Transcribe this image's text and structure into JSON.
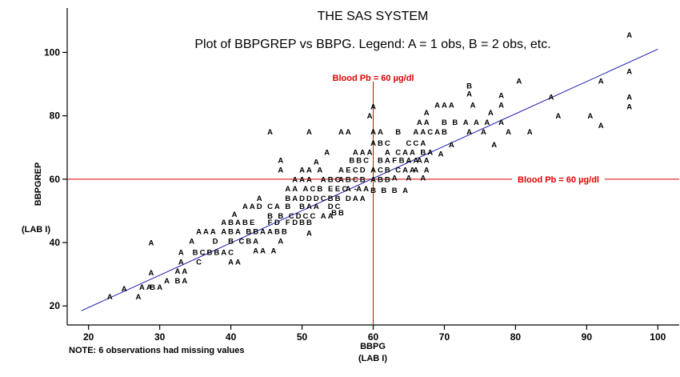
{
  "title": "THE SAS SYSTEM",
  "subtitle": "Plot of BBPGREP vs BBPG.  Legend: A = 1 obs, B = 2 obs, etc.",
  "note": "NOTE: 6 observations had missing values",
  "colors": {
    "reference": "#e00000",
    "fit": "#1a1ab0",
    "axis": "#000000"
  },
  "chart_data": {
    "type": "scatter",
    "xlabel": "BBPG",
    "xlabel2": "(LAB I)",
    "ylabel": "BBPGREP",
    "ylabel2": "(LAB I)",
    "xlim": [
      17,
      103
    ],
    "ylim": [
      14,
      114
    ],
    "xticks": [
      20,
      30,
      40,
      50,
      60,
      70,
      80,
      90,
      100
    ],
    "yticks": [
      20,
      40,
      60,
      80,
      100
    ],
    "reference_lines": [
      {
        "axis": "x",
        "value": 60,
        "label": "Blood Pb = 60 µg/dl"
      },
      {
        "axis": "y",
        "value": 60,
        "label": "Blood Pb = 60 µg/dl"
      }
    ],
    "fit_line": {
      "x": [
        19,
        100
      ],
      "y": [
        18.5,
        101
      ]
    },
    "points": [
      [
        23,
        23,
        "A"
      ],
      [
        25,
        25.5,
        "A"
      ],
      [
        27,
        23,
        "A"
      ],
      [
        27.5,
        26,
        "A"
      ],
      [
        28.5,
        26,
        "A"
      ],
      [
        29,
        26,
        "B"
      ],
      [
        30,
        26,
        "A"
      ],
      [
        31,
        28,
        "A"
      ],
      [
        32.5,
        28,
        "B"
      ],
      [
        33.5,
        28,
        "A"
      ],
      [
        28.8,
        30.5,
        "A"
      ],
      [
        32.5,
        31,
        "A"
      ],
      [
        33.5,
        31,
        "A"
      ],
      [
        28.8,
        40,
        "A"
      ],
      [
        33,
        34,
        "A"
      ],
      [
        33,
        37,
        "A"
      ],
      [
        35.5,
        34,
        "C"
      ],
      [
        35,
        37,
        "B"
      ],
      [
        36,
        37,
        "C"
      ],
      [
        37,
        37,
        "B"
      ],
      [
        38,
        37,
        "B"
      ],
      [
        39,
        37,
        "A"
      ],
      [
        40,
        37,
        "C"
      ],
      [
        40,
        34,
        "A"
      ],
      [
        41,
        34,
        "A"
      ],
      [
        34.5,
        40.5,
        "A"
      ],
      [
        37.8,
        40.5,
        "D"
      ],
      [
        40,
        40.5,
        "B"
      ],
      [
        41.5,
        40.5,
        "C"
      ],
      [
        42.5,
        40.5,
        "B"
      ],
      [
        43.5,
        40.5,
        "A"
      ],
      [
        43.5,
        37.5,
        "A"
      ],
      [
        44.5,
        37.5,
        "A"
      ],
      [
        46,
        37.5,
        "A"
      ],
      [
        47,
        40.5,
        "A"
      ],
      [
        51,
        43,
        "A"
      ],
      [
        35.5,
        43.5,
        "A"
      ],
      [
        36.5,
        43.5,
        "A"
      ],
      [
        37.5,
        43.5,
        "A"
      ],
      [
        39,
        43.5,
        "A"
      ],
      [
        40,
        43.5,
        "B"
      ],
      [
        41,
        43.5,
        "A"
      ],
      [
        42.5,
        43.5,
        "B"
      ],
      [
        43.5,
        43.5,
        "B"
      ],
      [
        44.5,
        43.5,
        "A"
      ],
      [
        45.5,
        43.5,
        "A"
      ],
      [
        46.5,
        43.5,
        "B"
      ],
      [
        47.5,
        43.5,
        "B"
      ],
      [
        39,
        46.5,
        "A"
      ],
      [
        40,
        46.5,
        "B"
      ],
      [
        41,
        46.5,
        "A"
      ],
      [
        42,
        46.5,
        "B"
      ],
      [
        43,
        46.5,
        "E"
      ],
      [
        45.5,
        46.5,
        "F"
      ],
      [
        46.5,
        46.5,
        "D"
      ],
      [
        48,
        46.5,
        "F"
      ],
      [
        49,
        46.5,
        "D"
      ],
      [
        50,
        46.5,
        "B"
      ],
      [
        51,
        46.5,
        "B"
      ],
      [
        40.5,
        49,
        "A"
      ],
      [
        42,
        51.5,
        "A"
      ],
      [
        43,
        51.5,
        "A"
      ],
      [
        44,
        51.5,
        "D"
      ],
      [
        45.5,
        51.5,
        "C"
      ],
      [
        46.5,
        51.5,
        "A"
      ],
      [
        48,
        51.5,
        "B"
      ],
      [
        45.5,
        48.5,
        "B"
      ],
      [
        47,
        48.5,
        "B"
      ],
      [
        48.5,
        48.5,
        "C"
      ],
      [
        49.5,
        48.5,
        "D"
      ],
      [
        50.5,
        48.5,
        "C"
      ],
      [
        51.5,
        48.5,
        "C"
      ],
      [
        53,
        48.5,
        "A"
      ],
      [
        54,
        48.5,
        "A"
      ],
      [
        44,
        54,
        "A"
      ],
      [
        48,
        54,
        "B"
      ],
      [
        49,
        54,
        "A"
      ],
      [
        50,
        54,
        "D"
      ],
      [
        51,
        54,
        "D"
      ],
      [
        52,
        54,
        "D"
      ],
      [
        53,
        54,
        "C"
      ],
      [
        54,
        54,
        "B"
      ],
      [
        55,
        54,
        "B"
      ],
      [
        50,
        51.5,
        "B"
      ],
      [
        51,
        51.5,
        "A"
      ],
      [
        52,
        51.5,
        "A"
      ],
      [
        54,
        51.5,
        "D"
      ],
      [
        55,
        51.5,
        "C"
      ],
      [
        54.5,
        49.5,
        "B"
      ],
      [
        55.5,
        49.5,
        "B"
      ],
      [
        48,
        57,
        "A"
      ],
      [
        49,
        57,
        "A"
      ],
      [
        50.5,
        57,
        "A"
      ],
      [
        51.5,
        57,
        "C"
      ],
      [
        52.5,
        57,
        "B"
      ],
      [
        54,
        57,
        "E"
      ],
      [
        55,
        57,
        "E"
      ],
      [
        56,
        57,
        "C"
      ],
      [
        56.5,
        54,
        "D"
      ],
      [
        57.5,
        54,
        "A"
      ],
      [
        58.5,
        54,
        "A"
      ],
      [
        56.5,
        57,
        "A"
      ],
      [
        57.5,
        57,
        "-"
      ],
      [
        58,
        57,
        "A"
      ],
      [
        59,
        57,
        "A"
      ],
      [
        49,
        60,
        "A"
      ],
      [
        50,
        60,
        "A"
      ],
      [
        51,
        60,
        "A"
      ],
      [
        53,
        60,
        "A"
      ],
      [
        54,
        60,
        "B"
      ],
      [
        55,
        60,
        "C"
      ],
      [
        55.5,
        60,
        "A"
      ],
      [
        56.5,
        60,
        "B"
      ],
      [
        57.5,
        60,
        "C"
      ],
      [
        58.5,
        60,
        "B"
      ],
      [
        60,
        60,
        "A"
      ],
      [
        61,
        60,
        "B"
      ],
      [
        62,
        60,
        "B"
      ],
      [
        60,
        56.5,
        "B"
      ],
      [
        61.5,
        56.5,
        "B"
      ],
      [
        63,
        56.5,
        "B"
      ],
      [
        64.5,
        56.5,
        "A"
      ],
      [
        63,
        60.5,
        "A"
      ],
      [
        65,
        60.5,
        "A"
      ],
      [
        67,
        60.5,
        "A"
      ],
      [
        47,
        63,
        "A"
      ],
      [
        47,
        66,
        "A"
      ],
      [
        50,
        63,
        "A"
      ],
      [
        51,
        63,
        "A"
      ],
      [
        52.5,
        63,
        "A"
      ],
      [
        52,
        65.5,
        "A"
      ],
      [
        53.5,
        68.5,
        "A"
      ],
      [
        55.5,
        63,
        "A"
      ],
      [
        56.5,
        63,
        "E"
      ],
      [
        57.5,
        63,
        "C"
      ],
      [
        58.5,
        63,
        "D"
      ],
      [
        57,
        66,
        "B"
      ],
      [
        58,
        66,
        "B"
      ],
      [
        59,
        66,
        "C"
      ],
      [
        57.5,
        68.5,
        "A"
      ],
      [
        58.5,
        68.5,
        "A"
      ],
      [
        59.5,
        68.5,
        "A"
      ],
      [
        61,
        66,
        "B"
      ],
      [
        62,
        66,
        "A"
      ],
      [
        63,
        66,
        "F"
      ],
      [
        60,
        63,
        "A"
      ],
      [
        61,
        63,
        "C"
      ],
      [
        62,
        63,
        "B"
      ],
      [
        63.5,
        63,
        "C"
      ],
      [
        64.5,
        63,
        "A"
      ],
      [
        65.5,
        63,
        "A"
      ],
      [
        64,
        66,
        "B"
      ],
      [
        65,
        66,
        "A"
      ],
      [
        66,
        66,
        "A"
      ],
      [
        66,
        63,
        "A"
      ],
      [
        67.5,
        63,
        "A"
      ],
      [
        66.5,
        66,
        "A"
      ],
      [
        67.5,
        66,
        "A"
      ],
      [
        62,
        68.5,
        "A"
      ],
      [
        63.5,
        68.5,
        "C"
      ],
      [
        64.5,
        68.5,
        "A"
      ],
      [
        65.5,
        68.5,
        "A"
      ],
      [
        60,
        71.5,
        "A"
      ],
      [
        61,
        71.5,
        "B"
      ],
      [
        62,
        71.5,
        "C"
      ],
      [
        65,
        71.5,
        "C"
      ],
      [
        66,
        71.5,
        "C"
      ],
      [
        67,
        71.5,
        "A"
      ],
      [
        67,
        68.5,
        "B"
      ],
      [
        68,
        68.5,
        "A"
      ],
      [
        69.5,
        68,
        "A"
      ],
      [
        45.5,
        75,
        "A"
      ],
      [
        51,
        75,
        "A"
      ],
      [
        55.5,
        75,
        "A"
      ],
      [
        56.5,
        75,
        "A"
      ],
      [
        60,
        75,
        "A"
      ],
      [
        61,
        75,
        "A"
      ],
      [
        63.5,
        75,
        "B"
      ],
      [
        66,
        75,
        "A"
      ],
      [
        67,
        75,
        "A"
      ],
      [
        68,
        75,
        "C"
      ],
      [
        69,
        75,
        "A"
      ],
      [
        70,
        75,
        "B"
      ],
      [
        66.5,
        78,
        "A"
      ],
      [
        67.5,
        78,
        "A"
      ],
      [
        70,
        78,
        "B"
      ],
      [
        71.5,
        78,
        "B"
      ],
      [
        73,
        78,
        "A"
      ],
      [
        74.5,
        78,
        "A"
      ],
      [
        76,
        78,
        "A"
      ],
      [
        78,
        78,
        "A"
      ],
      [
        71,
        71,
        "A"
      ],
      [
        73.5,
        75,
        "A"
      ],
      [
        75.5,
        75,
        "A"
      ],
      [
        77,
        71,
        "A"
      ],
      [
        79,
        75,
        "A"
      ],
      [
        82,
        75,
        "A"
      ],
      [
        67.5,
        81,
        "A"
      ],
      [
        69,
        83.5,
        "A"
      ],
      [
        70,
        83.5,
        "A"
      ],
      [
        71,
        83.5,
        "A"
      ],
      [
        60,
        83,
        "A"
      ],
      [
        59.5,
        80,
        "A"
      ],
      [
        73.5,
        87,
        "A"
      ],
      [
        73.5,
        89.5,
        "B"
      ],
      [
        74,
        83.5,
        "A"
      ],
      [
        76.5,
        81,
        "A"
      ],
      [
        78,
        83.5,
        "A"
      ],
      [
        78,
        86.5,
        "A"
      ],
      [
        80.5,
        91,
        "A"
      ],
      [
        85,
        86,
        "A"
      ],
      [
        86,
        80,
        "A"
      ],
      [
        90.5,
        80,
        "A"
      ],
      [
        92,
        77,
        "A"
      ],
      [
        92,
        91,
        "A"
      ],
      [
        96,
        83,
        "A"
      ],
      [
        96,
        86,
        "A"
      ],
      [
        96,
        94,
        "A"
      ],
      [
        96,
        105.5,
        "A"
      ]
    ]
  }
}
